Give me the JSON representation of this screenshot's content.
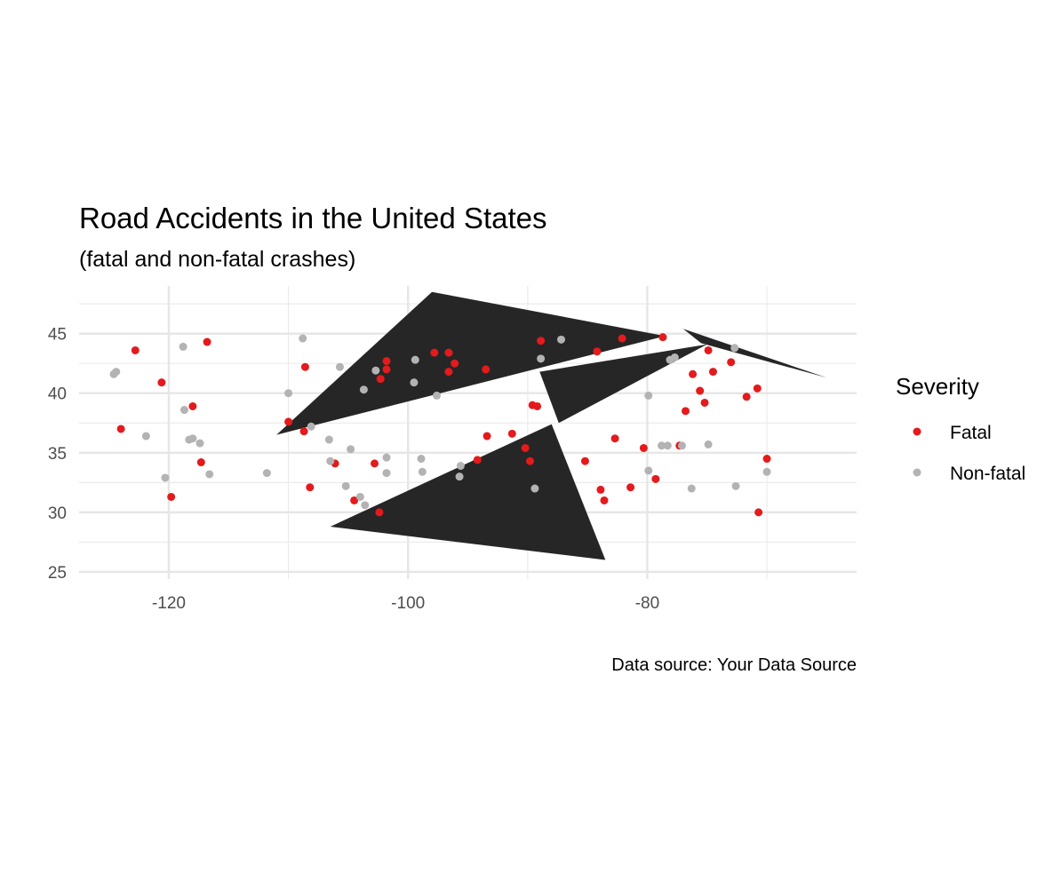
{
  "chart_data": {
    "type": "scatter",
    "title": "Road Accidents in the United States",
    "subtitle": "(fatal and non-fatal crashes)",
    "caption": "Data source: Your Data Source",
    "xlim": [
      -127.5,
      -62.5
    ],
    "ylim": [
      24.4,
      49.0
    ],
    "x_ticks": [
      -120,
      -100,
      -80
    ],
    "x_tick_labels": [
      "-120",
      "-100",
      "-80"
    ],
    "y_ticks": [
      25,
      30,
      35,
      40,
      45
    ],
    "y_tick_labels": [
      "25",
      "30",
      "35",
      "40",
      "45"
    ],
    "grid": true,
    "legend": {
      "title": "Severity",
      "position": "right",
      "entries": [
        {
          "name": "Fatal",
          "color": "#e41a1c"
        },
        {
          "name": "Non-fatal",
          "color": "#b3b3b3"
        }
      ]
    },
    "background_polygons": [
      {
        "fill": "#262626",
        "points": [
          [
            -98.0,
            48.5
          ],
          [
            -111.0,
            36.5
          ],
          [
            -78.5,
            44.8
          ]
        ]
      },
      {
        "fill": "#262626",
        "points": [
          [
            -77.0,
            45.4
          ],
          [
            -65.0,
            41.3
          ],
          [
            -75.5,
            44.2
          ]
        ]
      },
      {
        "fill": "#262626",
        "points": [
          [
            -88.0,
            37.4
          ],
          [
            -83.5,
            26.0
          ],
          [
            -106.5,
            28.8
          ]
        ]
      },
      {
        "fill": "#262626",
        "points": [
          [
            -87.4,
            37.5
          ],
          [
            -75.0,
            44.1
          ],
          [
            -89.0,
            41.8
          ]
        ]
      }
    ],
    "series": [
      {
        "name": "Fatal",
        "color": "#e41a1c",
        "points": [
          [
            -122.8,
            43.6
          ],
          [
            -124.0,
            37.0
          ],
          [
            -120.6,
            40.9
          ],
          [
            -116.8,
            44.3
          ],
          [
            -118.0,
            38.9
          ],
          [
            -117.3,
            34.2
          ],
          [
            -119.8,
            31.3
          ],
          [
            -108.6,
            42.2
          ],
          [
            -110.0,
            37.6
          ],
          [
            -108.7,
            36.8
          ],
          [
            -108.2,
            32.1
          ],
          [
            -106.1,
            34.1
          ],
          [
            -104.5,
            31.0
          ],
          [
            -102.8,
            34.1
          ],
          [
            -102.4,
            30.0
          ],
          [
            -101.8,
            42.7
          ],
          [
            -101.8,
            42.0
          ],
          [
            -102.3,
            41.2
          ],
          [
            -97.8,
            43.4
          ],
          [
            -96.6,
            43.4
          ],
          [
            -96.1,
            42.5
          ],
          [
            -96.6,
            41.8
          ],
          [
            -93.5,
            42.0
          ],
          [
            -93.4,
            36.4
          ],
          [
            -94.2,
            34.4
          ],
          [
            -91.3,
            36.6
          ],
          [
            -90.2,
            35.4
          ],
          [
            -89.8,
            34.3
          ],
          [
            -89.6,
            39.0
          ],
          [
            -89.2,
            38.9
          ],
          [
            -88.9,
            44.4
          ],
          [
            -84.2,
            43.5
          ],
          [
            -82.1,
            44.6
          ],
          [
            -78.7,
            44.7
          ],
          [
            -85.2,
            34.3
          ],
          [
            -83.9,
            31.9
          ],
          [
            -83.6,
            31.0
          ],
          [
            -82.7,
            36.2
          ],
          [
            -81.4,
            32.1
          ],
          [
            -80.3,
            35.4
          ],
          [
            -79.3,
            32.8
          ],
          [
            -77.3,
            35.6
          ],
          [
            -76.8,
            38.5
          ],
          [
            -76.2,
            41.6
          ],
          [
            -75.6,
            40.2
          ],
          [
            -75.2,
            39.2
          ],
          [
            -74.9,
            43.6
          ],
          [
            -74.5,
            41.8
          ],
          [
            -73.0,
            42.6
          ],
          [
            -71.7,
            39.7
          ],
          [
            -70.8,
            40.4
          ],
          [
            -70.7,
            30.0
          ],
          [
            -70.0,
            34.5
          ]
        ]
      },
      {
        "name": "Non-fatal",
        "color": "#b3b3b3",
        "points": [
          [
            -124.6,
            41.6
          ],
          [
            -124.4,
            41.8
          ],
          [
            -121.9,
            36.4
          ],
          [
            -120.3,
            32.9
          ],
          [
            -118.8,
            43.9
          ],
          [
            -118.7,
            38.6
          ],
          [
            -118.3,
            36.1
          ],
          [
            -118.0,
            36.2
          ],
          [
            -117.4,
            35.8
          ],
          [
            -116.6,
            33.2
          ],
          [
            -111.8,
            33.3
          ],
          [
            -110.0,
            40.0
          ],
          [
            -108.8,
            44.6
          ],
          [
            -108.1,
            37.2
          ],
          [
            -106.6,
            36.1
          ],
          [
            -106.5,
            34.3
          ],
          [
            -105.7,
            42.2
          ],
          [
            -105.2,
            32.2
          ],
          [
            -104.8,
            35.3
          ],
          [
            -104.0,
            31.3
          ],
          [
            -103.6,
            30.6
          ],
          [
            -103.7,
            40.3
          ],
          [
            -102.7,
            41.9
          ],
          [
            -101.8,
            33.3
          ],
          [
            -101.8,
            34.6
          ],
          [
            -99.4,
            42.8
          ],
          [
            -99.5,
            40.9
          ],
          [
            -98.9,
            34.5
          ],
          [
            -98.8,
            33.4
          ],
          [
            -97.6,
            39.8
          ],
          [
            -95.6,
            33.9
          ],
          [
            -95.7,
            33.0
          ],
          [
            -89.4,
            32.0
          ],
          [
            -88.9,
            42.9
          ],
          [
            -87.2,
            44.5
          ],
          [
            -79.9,
            39.8
          ],
          [
            -79.9,
            33.5
          ],
          [
            -78.8,
            35.6
          ],
          [
            -78.3,
            35.6
          ],
          [
            -78.1,
            42.8
          ],
          [
            -77.7,
            43.0
          ],
          [
            -77.1,
            35.6
          ],
          [
            -76.3,
            32.0
          ],
          [
            -74.9,
            35.7
          ],
          [
            -72.7,
            43.8
          ],
          [
            -72.6,
            32.2
          ],
          [
            -70.0,
            33.4
          ]
        ]
      }
    ]
  }
}
